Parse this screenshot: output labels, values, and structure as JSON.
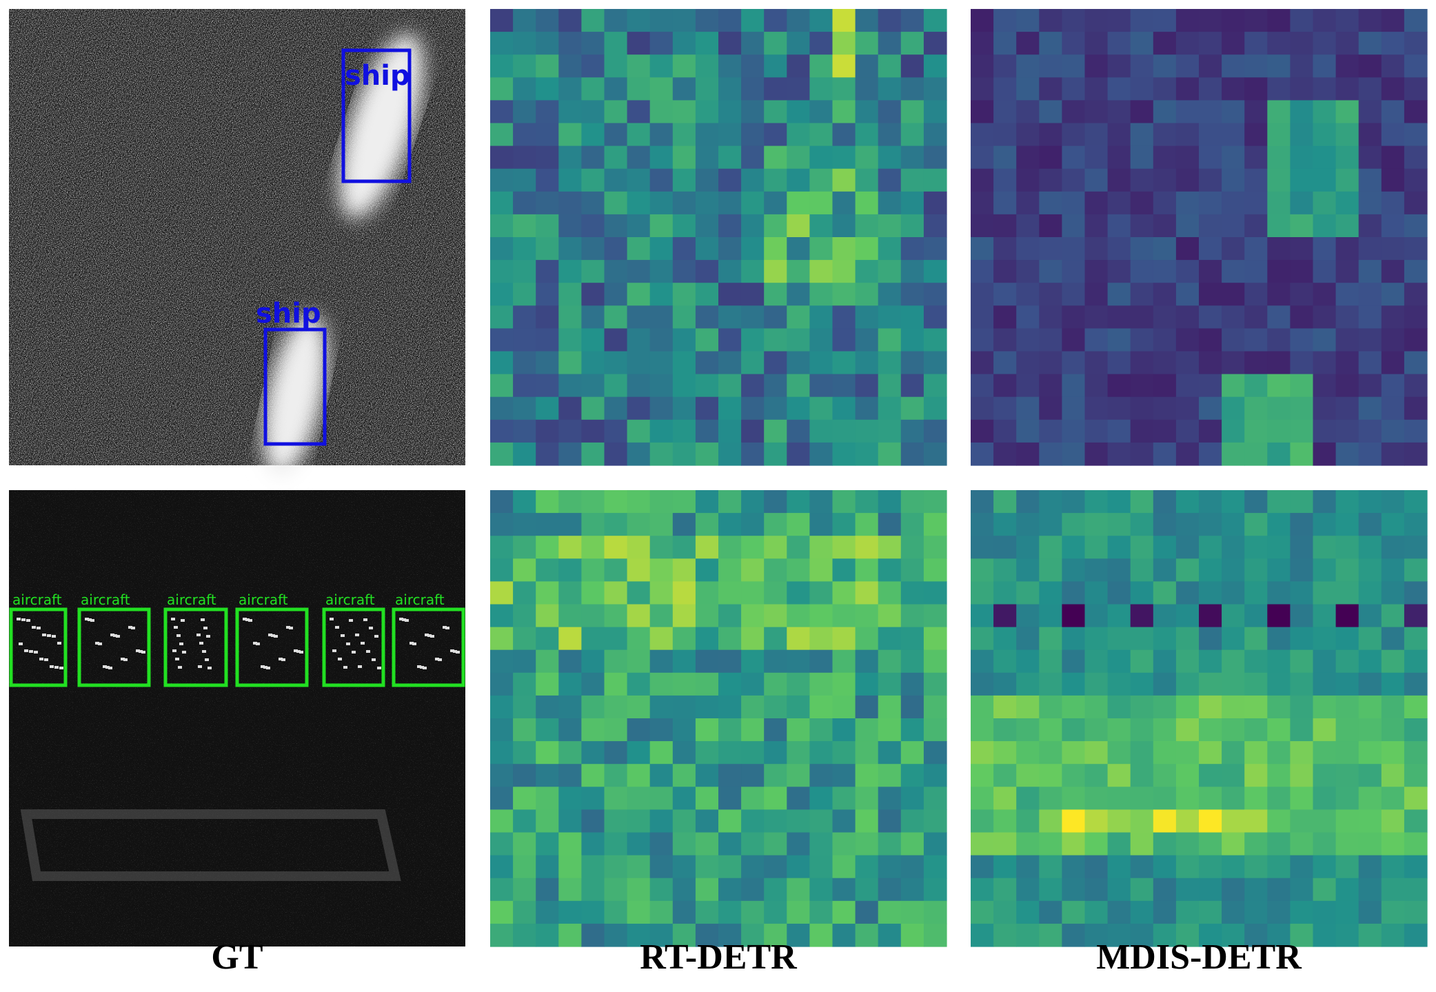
{
  "captions": [
    "GT",
    "RT-DETR",
    "MDIS-DETR"
  ],
  "row1_labels": [
    "ship",
    "ship"
  ],
  "row2_labels": [
    "aircraft",
    "aircraft",
    "aircraft",
    "aircraft",
    "aircraft",
    "aircraft"
  ]
}
